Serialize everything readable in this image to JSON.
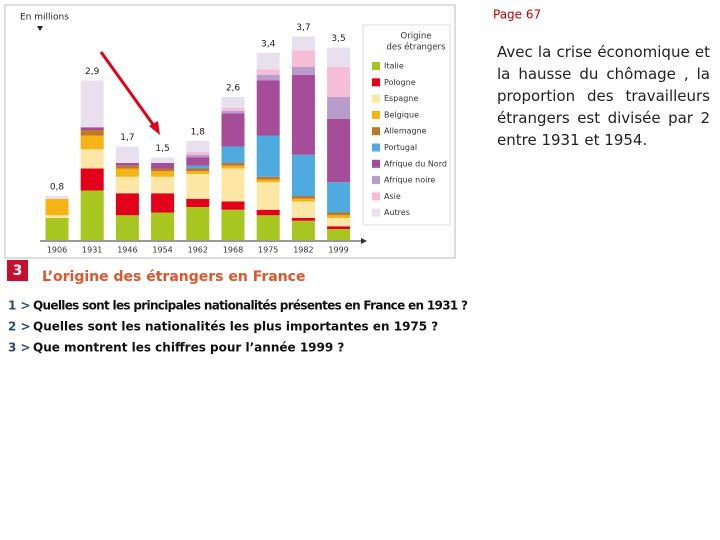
{
  "chart_data": {
    "type": "stacked_bar",
    "unit_label": "En millions",
    "legend_title": [
      "Origine",
      "des étrangers"
    ],
    "categories": [
      "1906",
      "1931",
      "1946",
      "1954",
      "1962",
      "1968",
      "1975",
      "1982",
      "1999"
    ],
    "totals": [
      0.8,
      2.9,
      1.7,
      1.5,
      1.8,
      2.6,
      3.4,
      3.7,
      3.5
    ],
    "total_labels": [
      "0,8",
      "2,9",
      "1,7",
      "1,5",
      "1,8",
      "2,6",
      "3,4",
      "3,7",
      "3,5"
    ],
    "series": [
      {
        "name": "Italie",
        "color": "#a8c520",
        "values": [
          0.4,
          0.9,
          0.45,
          0.5,
          0.6,
          0.55,
          0.45,
          0.35,
          0.2
        ]
      },
      {
        "name": "Pologne",
        "color": "#e2001a",
        "values": [
          0,
          0.4,
          0.4,
          0.35,
          0.15,
          0.15,
          0.1,
          0.05,
          0.05
        ]
      },
      {
        "name": "Espagne",
        "color": "#fde7a6",
        "values": [
          0.05,
          0.35,
          0.3,
          0.3,
          0.45,
          0.6,
          0.5,
          0.3,
          0.15
        ]
      },
      {
        "name": "Belgique",
        "color": "#f5b315",
        "values": [
          0.3,
          0.25,
          0.15,
          0.1,
          0.05,
          0.05,
          0.05,
          0.05,
          0.05
        ]
      },
      {
        "name": "Allemagne",
        "color": "#c0772a",
        "values": [
          0,
          0.1,
          0.05,
          0.05,
          0.05,
          0.05,
          0.05,
          0.05,
          0.05
        ]
      },
      {
        "name": "Portugal",
        "color": "#4eaadf",
        "values": [
          0,
          0,
          0,
          0,
          0.05,
          0.3,
          0.75,
          0.75,
          0.55
        ]
      },
      {
        "name": "Afrique du Nord",
        "color": "#a64d9a",
        "values": [
          0,
          0.05,
          0.05,
          0.1,
          0.15,
          0.6,
          1.0,
          1.45,
          1.15
        ]
      },
      {
        "name": "Afrique noire",
        "color": "#b89ccb",
        "values": [
          0,
          0,
          0,
          0,
          0.05,
          0.05,
          0.1,
          0.15,
          0.4
        ]
      },
      {
        "name": "Asie",
        "color": "#f6bdd6",
        "values": [
          0,
          0,
          0,
          0,
          0.05,
          0.05,
          0.1,
          0.3,
          0.55
        ]
      },
      {
        "name": "Autres",
        "color": "#e8e0ef",
        "values": [
          0.05,
          0.85,
          0.3,
          0.1,
          0.2,
          0.2,
          0.3,
          0.25,
          0.35
        ]
      }
    ]
  },
  "figure_number": "3",
  "caption": "L’origine des étrangers en France",
  "questions": [
    {
      "number": "1 >",
      "text": "Quelles sont les principales nationalités présentes en France en 1931 ?"
    },
    {
      "number": "2 >",
      "text": "Quelles sont les nationalités les plus importantes en 1975 ?"
    },
    {
      "number": "3 >",
      "text": "Que montrent les chiffres pour l’année 1999 ?"
    }
  ],
  "page_label": "Page 67",
  "body_text": "Avec la crise économique et la hausse du chômage , la proportion des travailleurs étrangers est divisée par 2 entre 1931 et 1954."
}
